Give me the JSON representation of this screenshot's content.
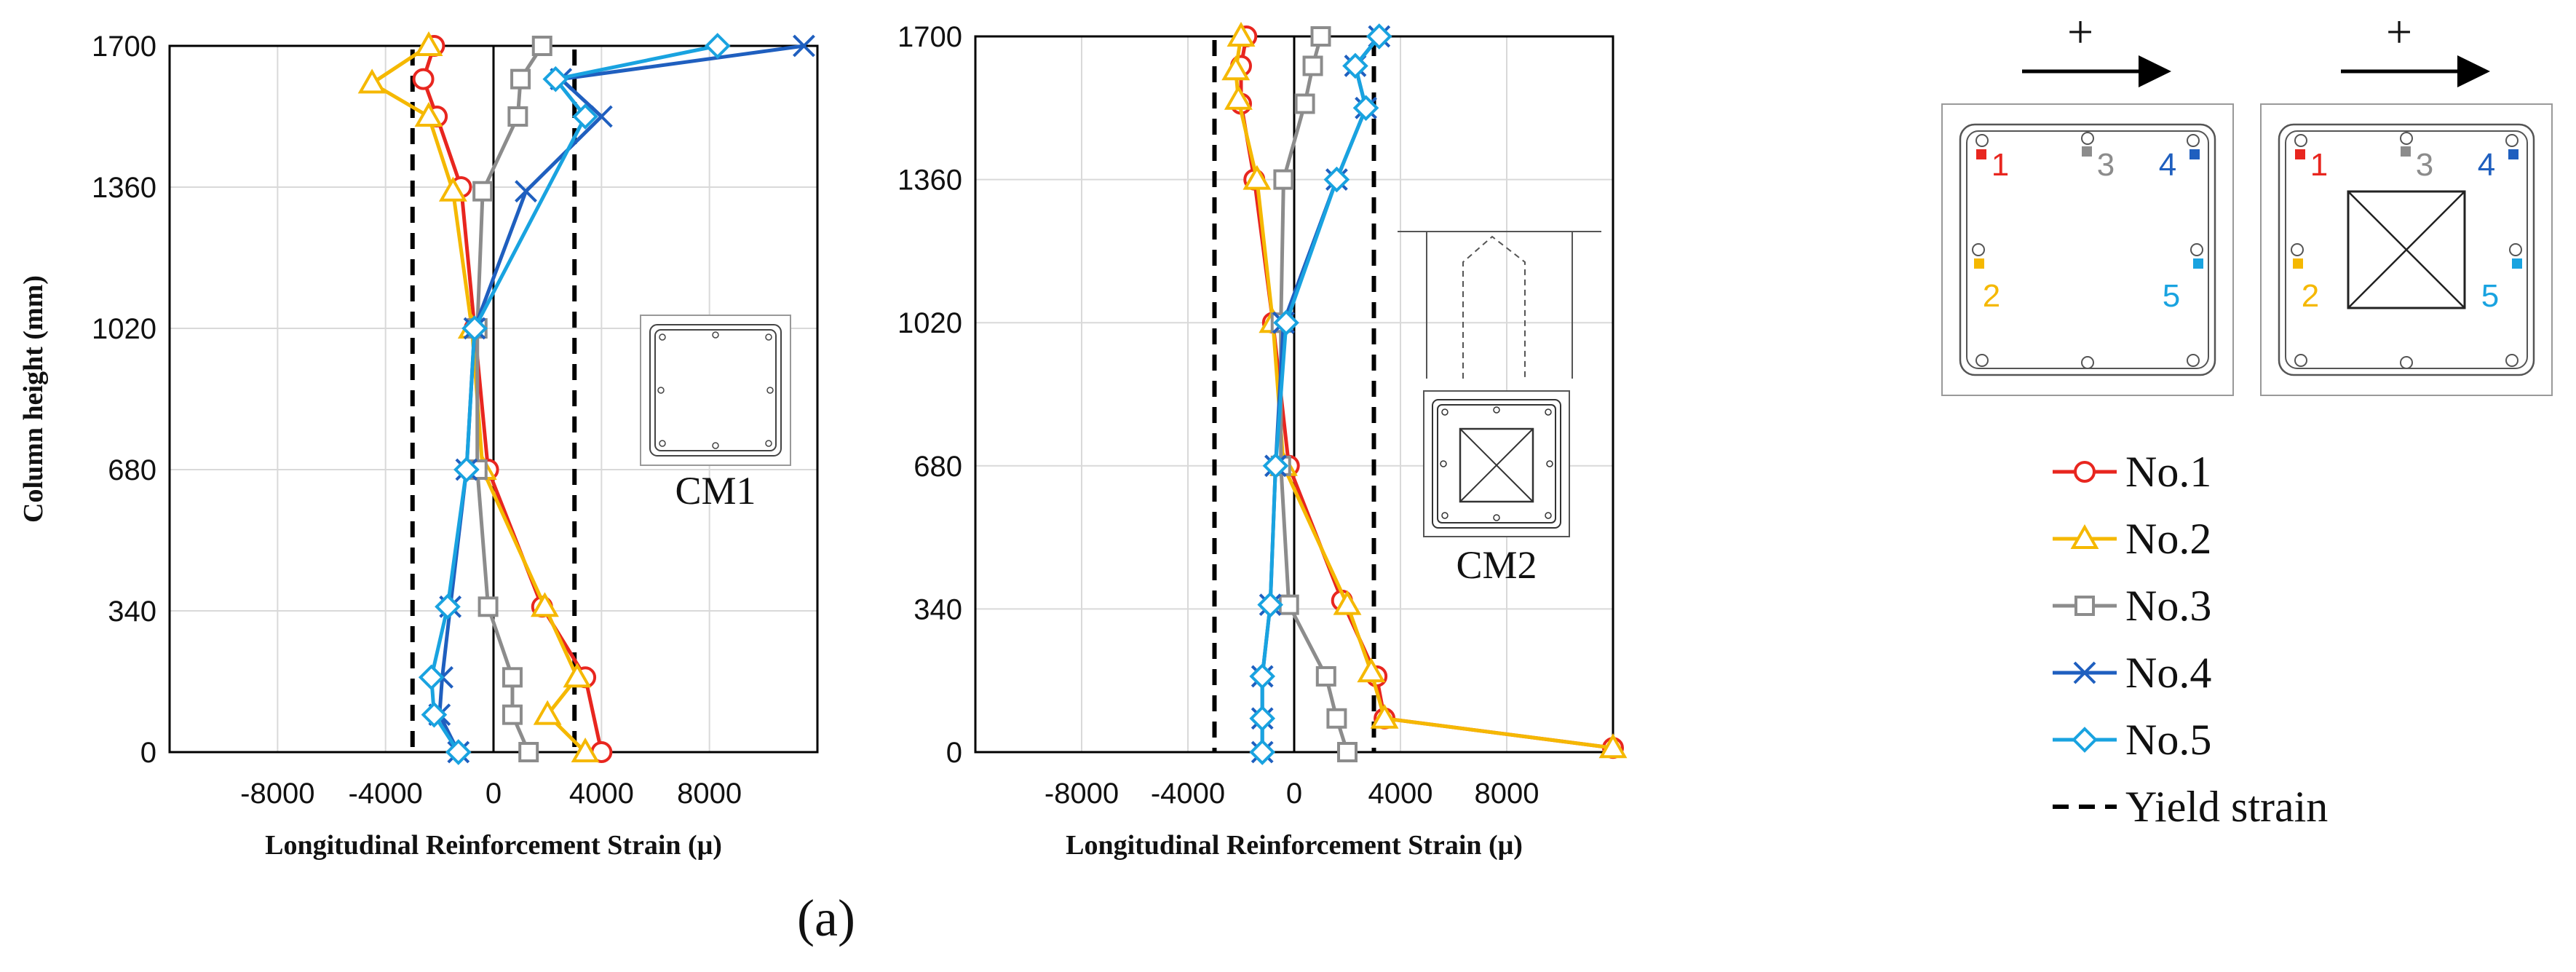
{
  "figure_label": "(a)",
  "colors": {
    "no1": "#e8261f",
    "no2": "#f5b800",
    "no3": "#8c8c8c",
    "no4": "#1f5fbf",
    "no5": "#19a3e0",
    "yield": "#000000"
  },
  "chart_data": [
    {
      "type": "line",
      "panel": "CM1",
      "inset_label": "CM1",
      "xlabel": "Longitudinal Reinforcement Strain (μ)",
      "ylabel": "Column height (mm)",
      "xlim": [
        -12000,
        12000
      ],
      "ylim": [
        0,
        1700
      ],
      "xticks": [
        -8000,
        -4000,
        0,
        4000,
        8000
      ],
      "xtick_labels": [
        "-8000",
        "-4000",
        "0",
        "4000",
        "8000"
      ],
      "yticks": [
        0,
        340,
        680,
        1020,
        1360,
        1700
      ],
      "ytick_labels": [
        "0",
        "340",
        "680",
        "1020",
        "1360",
        "1700"
      ],
      "grid": true,
      "yield_strain": [
        -3000,
        3000
      ],
      "series": [
        {
          "name": "No.1",
          "key": "no1",
          "marker": "circle",
          "points": [
            [
              -2200,
              1700
            ],
            [
              -2600,
              1620
            ],
            [
              -2100,
              1530
            ],
            [
              -1200,
              1360
            ],
            [
              -700,
              1020
            ],
            [
              -200,
              680
            ],
            [
              1800,
              350
            ],
            [
              3400,
              180
            ],
            [
              4000,
              0
            ]
          ]
        },
        {
          "name": "No.2",
          "key": "no2",
          "marker": "triangle",
          "points": [
            [
              -2400,
              1700
            ],
            [
              -4500,
              1610
            ],
            [
              -2400,
              1530
            ],
            [
              -1500,
              1350
            ],
            [
              -800,
              1020
            ],
            [
              -400,
              680
            ],
            [
              1900,
              350
            ],
            [
              3100,
              180
            ],
            [
              2000,
              90
            ],
            [
              3400,
              0
            ]
          ]
        },
        {
          "name": "No.3",
          "key": "no3",
          "marker": "square",
          "points": [
            [
              1800,
              1700
            ],
            [
              1000,
              1620
            ],
            [
              900,
              1530
            ],
            [
              -400,
              1350
            ],
            [
              -600,
              1020
            ],
            [
              -600,
              680
            ],
            [
              -200,
              350
            ],
            [
              700,
              180
            ],
            [
              700,
              90
            ],
            [
              1300,
              0
            ]
          ]
        },
        {
          "name": "No.4",
          "key": "no4",
          "marker": "x",
          "points": [
            [
              11500,
              1700
            ],
            [
              2500,
              1620
            ],
            [
              4000,
              1530
            ],
            [
              1200,
              1350
            ],
            [
              -700,
              1020
            ],
            [
              -1000,
              680
            ],
            [
              -1600,
              350
            ],
            [
              -1900,
              180
            ],
            [
              -2000,
              90
            ],
            [
              -1300,
              0
            ]
          ]
        },
        {
          "name": "No.5",
          "key": "no5",
          "marker": "diamond",
          "points": [
            [
              8300,
              1700
            ],
            [
              2300,
              1620
            ],
            [
              3400,
              1530
            ],
            [
              -700,
              1020
            ],
            [
              -1000,
              680
            ],
            [
              -1700,
              350
            ],
            [
              -2300,
              180
            ],
            [
              -2200,
              90
            ],
            [
              -1300,
              0
            ]
          ]
        }
      ]
    },
    {
      "type": "line",
      "panel": "CM2",
      "inset_label": "CM2",
      "xlabel": "Longitudinal Reinforcement Strain (μ)",
      "ylabel": "",
      "xlim": [
        -12000,
        12000
      ],
      "ylim": [
        0,
        1700
      ],
      "xticks": [
        -8000,
        -4000,
        0,
        4000,
        8000
      ],
      "xtick_labels": [
        "-8000",
        "-4000",
        "0",
        "4000",
        "8000"
      ],
      "yticks": [
        0,
        340,
        680,
        1020,
        1360,
        1700
      ],
      "ytick_labels": [
        "0",
        "340",
        "680",
        "1020",
        "1360",
        "1700"
      ],
      "grid": true,
      "yield_strain": [
        -3000,
        3000
      ],
      "series": [
        {
          "name": "No.1",
          "key": "no1",
          "marker": "circle",
          "points": [
            [
              -1800,
              1700
            ],
            [
              -2000,
              1630
            ],
            [
              -2000,
              1540
            ],
            [
              -1500,
              1360
            ],
            [
              -800,
              1020
            ],
            [
              -200,
              680
            ],
            [
              1800,
              360
            ],
            [
              3100,
              180
            ],
            [
              3400,
              80
            ],
            [
              12000,
              10
            ]
          ]
        },
        {
          "name": "No.2",
          "key": "no2",
          "marker": "triangle",
          "points": [
            [
              -2000,
              1700
            ],
            [
              -2200,
              1620
            ],
            [
              -2100,
              1550
            ],
            [
              -1400,
              1360
            ],
            [
              -800,
              1020
            ],
            [
              -400,
              680
            ],
            [
              2000,
              350
            ],
            [
              2900,
              190
            ],
            [
              3400,
              80
            ],
            [
              12000,
              10
            ]
          ]
        },
        {
          "name": "No.3",
          "key": "no3",
          "marker": "square",
          "points": [
            [
              1000,
              1700
            ],
            [
              700,
              1630
            ],
            [
              400,
              1540
            ],
            [
              -400,
              1360
            ],
            [
              -500,
              1020
            ],
            [
              -500,
              680
            ],
            [
              -200,
              350
            ],
            [
              1200,
              180
            ],
            [
              1600,
              80
            ],
            [
              2000,
              0
            ]
          ]
        },
        {
          "name": "No.4",
          "key": "no4",
          "marker": "x",
          "points": [
            [
              3200,
              1700
            ],
            [
              2300,
              1630
            ],
            [
              2700,
              1530
            ],
            [
              1600,
              1360
            ],
            [
              -400,
              1020
            ],
            [
              -700,
              680
            ],
            [
              -900,
              350
            ],
            [
              -1200,
              180
            ],
            [
              -1200,
              80
            ],
            [
              -1200,
              0
            ]
          ]
        },
        {
          "name": "No.5",
          "key": "no5",
          "marker": "diamond",
          "points": [
            [
              3200,
              1700
            ],
            [
              2300,
              1630
            ],
            [
              2700,
              1530
            ],
            [
              1600,
              1360
            ],
            [
              -300,
              1020
            ],
            [
              -700,
              680
            ],
            [
              -900,
              350
            ],
            [
              -1200,
              180
            ],
            [
              -1200,
              80
            ],
            [
              -1200,
              0
            ]
          ]
        }
      ]
    }
  ],
  "sections": {
    "direction_symbol": "+",
    "bar_numbers": [
      "1",
      "2",
      "3",
      "4",
      "5"
    ]
  },
  "legend": {
    "entries": [
      {
        "label": "No.1",
        "key": "no1",
        "marker": "circle"
      },
      {
        "label": "No.2",
        "key": "no2",
        "marker": "triangle"
      },
      {
        "label": "No.3",
        "key": "no3",
        "marker": "square"
      },
      {
        "label": "No.4",
        "key": "no4",
        "marker": "x"
      },
      {
        "label": "No.5",
        "key": "no5",
        "marker": "diamond"
      },
      {
        "label": "Yield strain",
        "key": "yield",
        "marker": "dashed"
      }
    ]
  }
}
